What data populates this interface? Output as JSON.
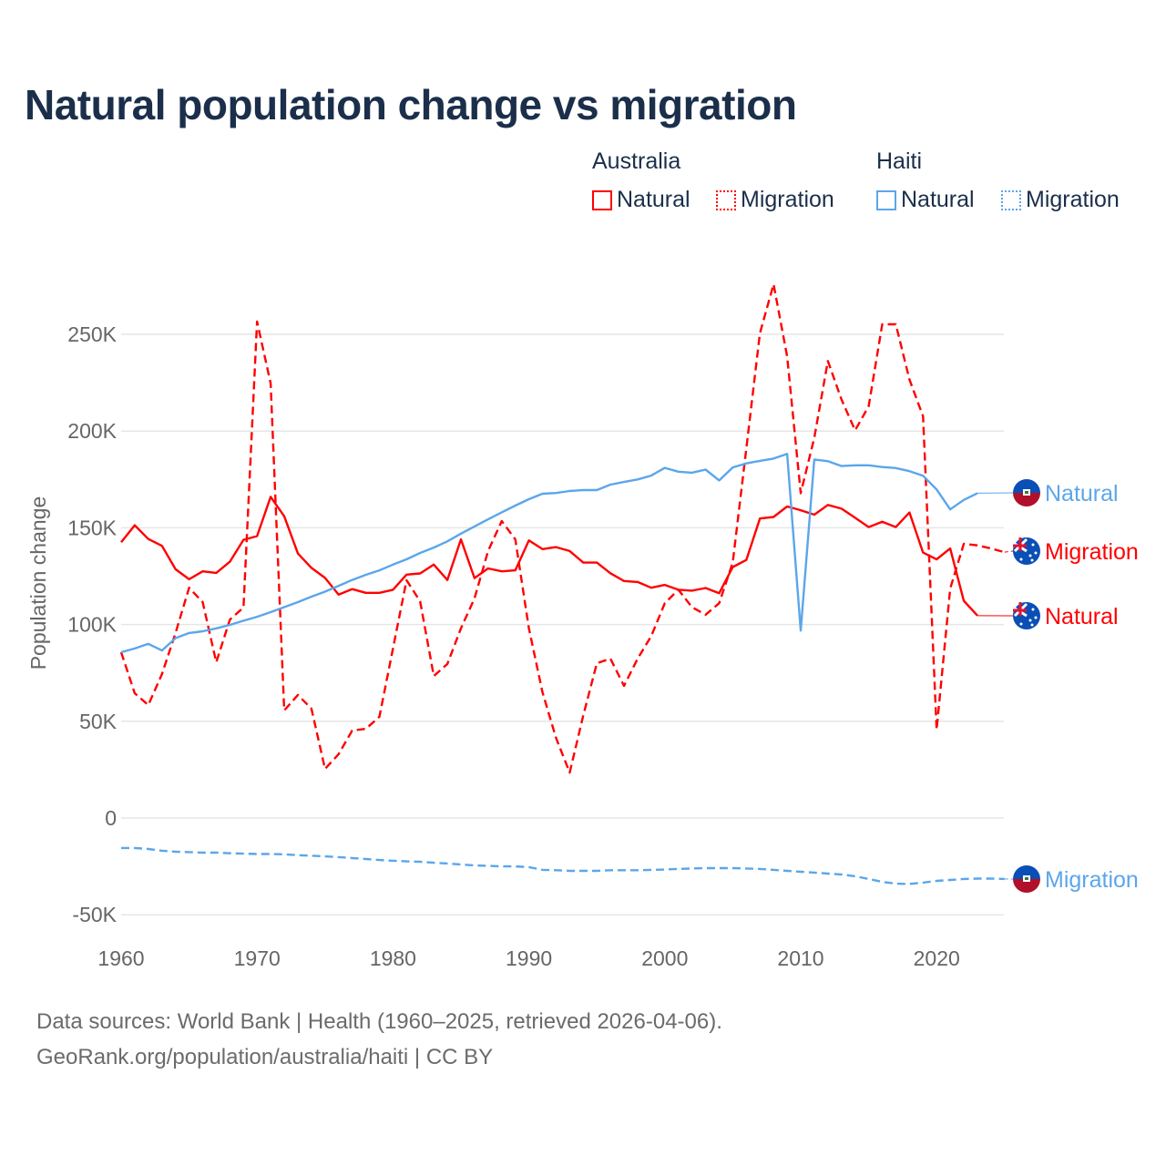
{
  "title": "Natural population change vs migration",
  "legend": {
    "groups": [
      {
        "country": "Australia",
        "items": [
          "Natural",
          "Migration"
        ],
        "color": "#ff0000"
      },
      {
        "country": "Haiti",
        "items": [
          "Natural",
          "Migration"
        ],
        "color": "#5ba6eb"
      }
    ]
  },
  "footer": {
    "line1": "Data sources: World Bank | Health (1960–2025, retrieved 2026-04-06).",
    "line2": "GeoRank.org/population/australia/haiti | CC BY"
  },
  "chart_data": {
    "type": "line",
    "title": "Natural population change vs migration",
    "xlabel": "",
    "ylabel": "Population change",
    "xlim": [
      1960,
      2025
    ],
    "ylim": [
      -50,
      280
    ],
    "y_unit": "thousands",
    "grid": true,
    "legend_position": "top-right",
    "x_ticks": [
      "1960",
      "1970",
      "1980",
      "1990",
      "2000",
      "2010",
      "2020"
    ],
    "y_ticks": [
      {
        "value": -50,
        "label": "-50K"
      },
      {
        "value": 0,
        "label": "0"
      },
      {
        "value": 50,
        "label": "50K"
      },
      {
        "value": 100,
        "label": "100K"
      },
      {
        "value": 150,
        "label": "150K"
      },
      {
        "value": 200,
        "label": "200K"
      },
      {
        "value": 250,
        "label": "250K"
      }
    ],
    "x_start": 1960,
    "series": [
      {
        "name": "Australia Natural",
        "end_label": "Natural",
        "flag": "australia",
        "color": "#ff0000",
        "dash": false,
        "values": [
          142.5,
          151.3,
          144.2,
          140.7,
          128.6,
          123.4,
          127.5,
          126.7,
          132.5,
          143.8,
          145.7,
          166,
          156,
          136.7,
          129.3,
          124.1,
          115.5,
          118.3,
          116.4,
          116.4,
          118,
          125.8,
          126.4,
          131,
          123,
          144,
          124,
          129,
          127.5,
          128,
          143.5,
          139,
          140,
          138,
          132,
          132,
          126.5,
          122.5,
          122,
          119,
          120.5,
          118,
          117.5,
          118.9,
          116.2,
          129.7,
          133.4,
          154.8,
          155.6,
          161,
          159.1,
          156.8,
          161.8,
          159.9,
          155.2,
          150.4,
          153.1,
          150.4,
          157.9,
          137.2,
          133.7,
          139.3,
          112.3,
          104.6,
          null,
          null
        ]
      },
      {
        "name": "Australia Migration",
        "end_label": "Migration",
        "flag": "australia",
        "color": "#ff0000",
        "dash": true,
        "values": [
          85.7,
          64.5,
          58.4,
          74.4,
          95.6,
          119,
          111.6,
          80.5,
          102.6,
          108.8,
          256.6,
          224.6,
          55.6,
          63.6,
          56.5,
          25.4,
          33,
          45.2,
          46.1,
          52.3,
          87.6,
          122.9,
          112,
          73.4,
          79.6,
          98,
          113.5,
          138,
          153.5,
          144,
          98,
          65,
          41.4,
          23.5,
          53,
          80,
          82.4,
          68.3,
          82.4,
          94,
          111,
          118,
          109,
          105.1,
          111,
          132.1,
          191,
          250.5,
          275.9,
          238.6,
          167.9,
          196.5,
          236.2,
          216.3,
          200.4,
          212.8,
          255.2,
          255.2,
          226.6,
          207.6,
          45.6,
          118.6,
          141.7,
          140.9,
          139.3,
          137.4
        ]
      },
      {
        "name": "Haiti Natural",
        "end_label": "Natural",
        "flag": "haiti",
        "color": "#5ba6eb",
        "dash": false,
        "values": [
          85.7,
          87.6,
          90,
          86.6,
          93,
          95.6,
          96.5,
          98,
          99.8,
          102,
          104,
          106.4,
          109,
          111.6,
          114.4,
          117,
          120,
          123,
          125.7,
          128,
          131,
          133.7,
          137,
          139.8,
          143,
          147,
          150.7,
          154.4,
          158,
          161.5,
          164.8,
          167.6,
          168,
          169,
          169.5,
          169.5,
          172.3,
          173.7,
          175,
          177,
          181,
          179,
          178.5,
          180.1,
          174.5,
          181.2,
          183.3,
          184.6,
          185.8,
          188.2,
          96.9,
          185.3,
          184.4,
          181.9,
          182.3,
          182.3,
          181.4,
          180.9,
          179.3,
          176.9,
          169.8,
          159.5,
          164.4,
          167.9,
          null,
          null
        ]
      },
      {
        "name": "Haiti Migration",
        "end_label": "Migration",
        "flag": "haiti",
        "color": "#5ba6eb",
        "dash": true,
        "values": [
          -15.5,
          -15.5,
          -16,
          -16.9,
          -17.4,
          -17.6,
          -17.9,
          -17.9,
          -18.2,
          -18.4,
          -18.6,
          -18.6,
          -18.8,
          -19.2,
          -19.5,
          -19.8,
          -20.2,
          -20.7,
          -21.2,
          -21.7,
          -22.1,
          -22.4,
          -22.6,
          -23.1,
          -23.5,
          -24,
          -24.5,
          -24.7,
          -25,
          -25,
          -25.4,
          -26.8,
          -27,
          -27.3,
          -27.3,
          -27.3,
          -27,
          -27,
          -27,
          -26.8,
          -26.6,
          -26.3,
          -26.1,
          -25.9,
          -25.9,
          -25.9,
          -26.1,
          -26.3,
          -26.8,
          -27.3,
          -27.8,
          -28.2,
          -28.7,
          -29.2,
          -30.1,
          -31.5,
          -33,
          -33.9,
          -34.1,
          -33.4,
          -32.5,
          -32,
          -31.5,
          -31.3,
          -31.3,
          -31.5
        ]
      }
    ]
  }
}
